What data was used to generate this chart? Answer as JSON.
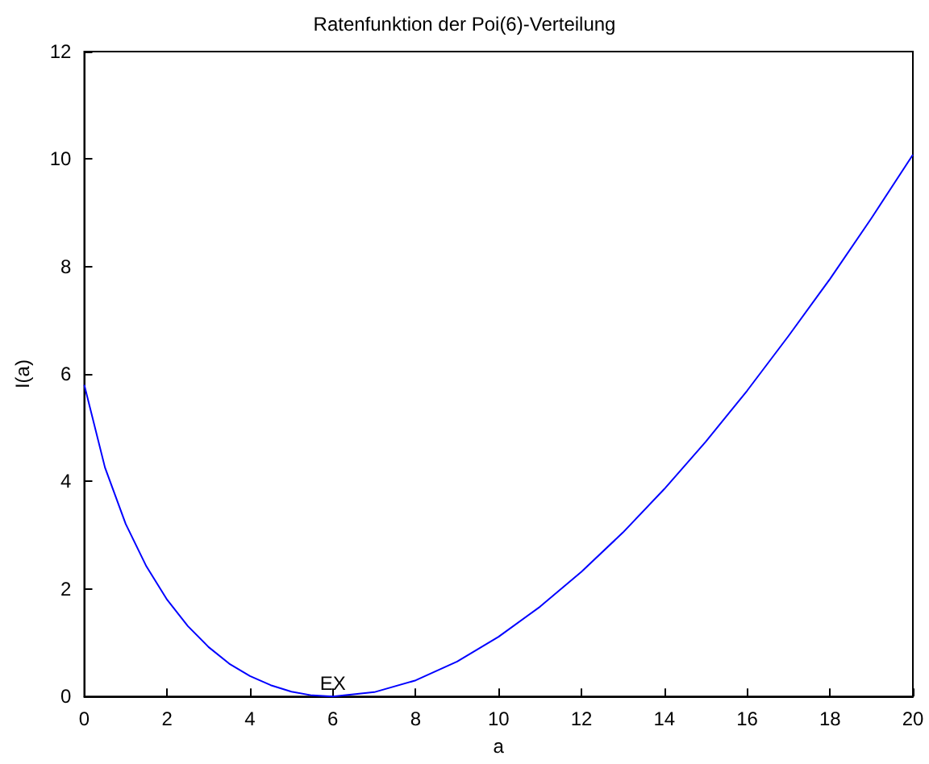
{
  "chart_data": {
    "type": "line",
    "title": "Ratenfunktion der Poi(6)-Verteilung",
    "xlabel": "a",
    "ylabel": "I(a)",
    "x": [
      0,
      0.5,
      1,
      1.5,
      2,
      2.5,
      3,
      3.5,
      4,
      4.5,
      5,
      5.5,
      6,
      7,
      8,
      9,
      10,
      11,
      12,
      13,
      14,
      15,
      16,
      17,
      18,
      19,
      20
    ],
    "series": [
      {
        "color": "#0000ff",
        "values": [
          5.8,
          4.26,
          3.21,
          2.42,
          1.8,
          1.31,
          0.92,
          0.61,
          0.38,
          0.21,
          0.09,
          0.02,
          0,
          0.08,
          0.3,
          0.65,
          1.11,
          1.67,
          2.32,
          3.05,
          3.86,
          4.74,
          5.69,
          6.71,
          7.77,
          8.9,
          10.08
        ]
      }
    ],
    "xlim": [
      0,
      20
    ],
    "xticks": [
      0,
      2,
      4,
      6,
      8,
      10,
      12,
      14,
      16,
      18,
      20
    ],
    "ylim": [
      0,
      12
    ],
    "yticks": [
      0,
      2,
      4,
      6,
      8,
      10,
      12
    ],
    "annotations": [
      {
        "text": "EX",
        "x": 6,
        "y": 0
      }
    ],
    "grid": false,
    "marker": "none",
    "line_style": "solid"
  }
}
